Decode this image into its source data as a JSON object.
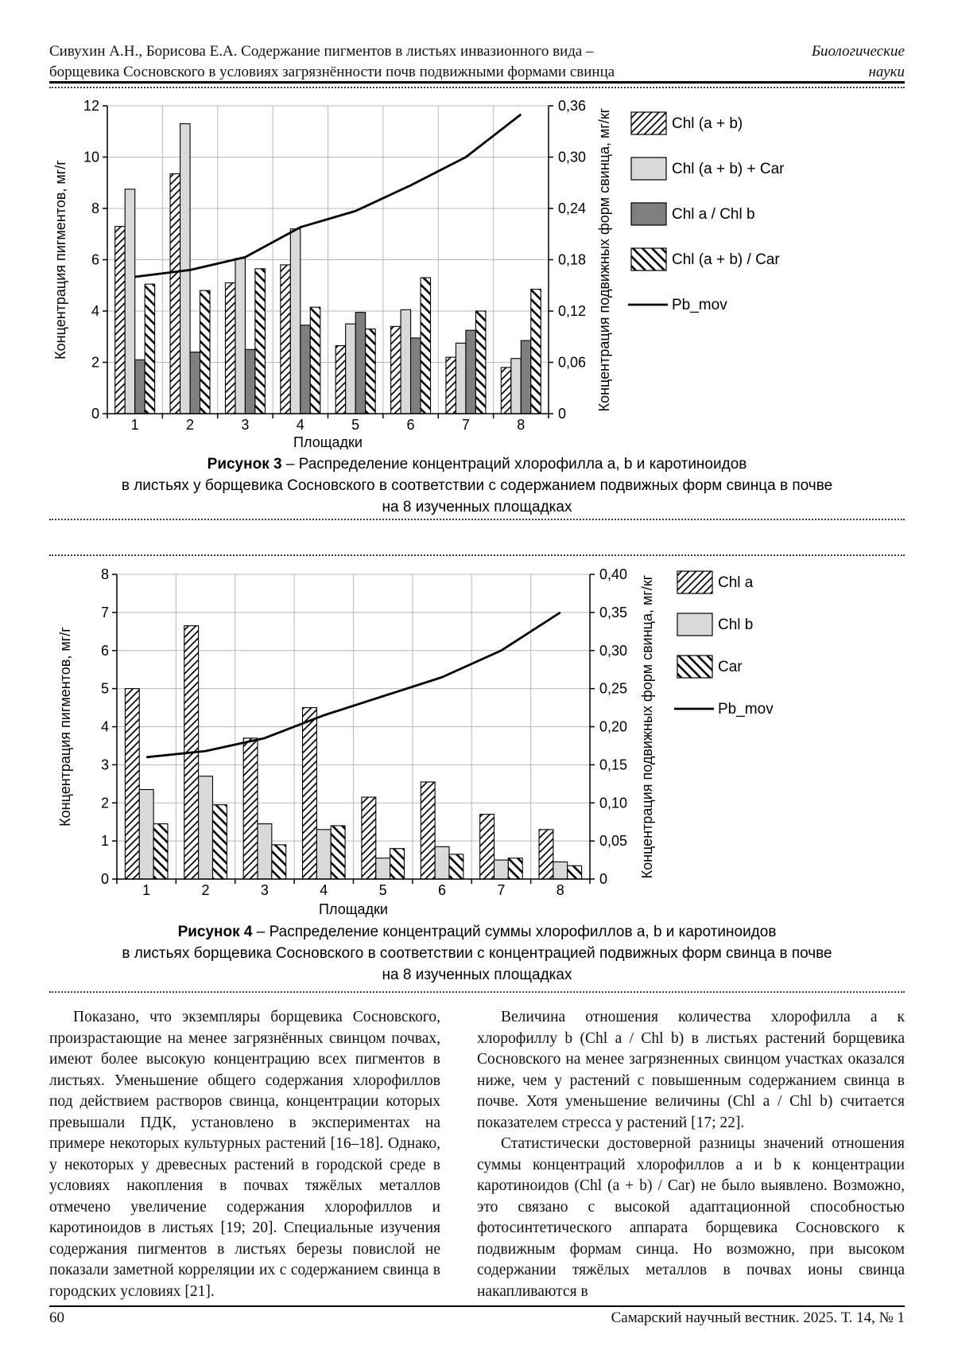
{
  "header": {
    "left_line1": "Сивухин А.Н., Борисова Е.А. Содержание пигментов в листьях инвазионного вида –",
    "left_line2": "борщевика Сосновского в условиях загрязнённости почв подвижными формами свинца",
    "right_line1": "Биологические",
    "right_line2": "науки"
  },
  "chart_data": [
    {
      "type": "bar",
      "title": "",
      "categories": [
        "1",
        "2",
        "3",
        "4",
        "5",
        "6",
        "7",
        "8"
      ],
      "xlabel": "Площадки",
      "ylabel_left": "Концентрация  пигментов,  мг/г",
      "ylabel_right": "Концентрация  подвижных  форм  свинца,  мг/кг",
      "ylim_left": [
        0,
        12
      ],
      "ytick_step_left": 2,
      "ylim_right": [
        0,
        0.36
      ],
      "ytick_step_right": 0.06,
      "grid": true,
      "legend_position": "right",
      "series": [
        {
          "name": "Chl (a + b)",
          "pattern": "diag",
          "values": [
            7.3,
            9.35,
            5.1,
            5.8,
            2.65,
            3.4,
            2.2,
            1.8
          ]
        },
        {
          "name": "Chl (a + b) + Car",
          "pattern": "light",
          "values": [
            8.75,
            11.3,
            6.05,
            7.2,
            3.5,
            4.05,
            2.75,
            2.15
          ]
        },
        {
          "name": "Chl a / Chl b",
          "pattern": "dark",
          "values": [
            2.1,
            2.4,
            2.5,
            3.45,
            3.95,
            2.95,
            3.25,
            2.85
          ]
        },
        {
          "name": "Chl (a + b) / Car",
          "pattern": "back",
          "values": [
            5.05,
            4.8,
            5.65,
            4.15,
            3.3,
            5.3,
            4.0,
            4.85
          ]
        }
      ],
      "line_series": {
        "name": "Pb_mov",
        "axis": "right",
        "values": [
          0.16,
          0.168,
          0.183,
          0.218,
          0.237,
          0.267,
          0.3,
          0.35
        ]
      }
    },
    {
      "type": "bar",
      "title": "",
      "categories": [
        "1",
        "2",
        "3",
        "4",
        "5",
        "6",
        "7",
        "8"
      ],
      "xlabel": "Площадки",
      "ylabel_left": "Концентрация  пигментов,  мг/г",
      "ylabel_right": "Концентрация  подвижных  форм  свинца,  мг/кг",
      "ylim_left": [
        0,
        8
      ],
      "ytick_step_left": 1,
      "ylim_right": [
        0,
        0.4
      ],
      "ytick_step_right": 0.05,
      "grid": true,
      "legend_position": "right",
      "series": [
        {
          "name": "Chl a",
          "pattern": "diag",
          "values": [
            5.0,
            6.65,
            3.7,
            4.5,
            2.15,
            2.55,
            1.7,
            1.3
          ]
        },
        {
          "name": "Chl b",
          "pattern": "light",
          "values": [
            2.35,
            2.7,
            1.45,
            1.3,
            0.55,
            0.85,
            0.5,
            0.45
          ]
        },
        {
          "name": "Car",
          "pattern": "back",
          "values": [
            1.45,
            1.95,
            0.9,
            1.4,
            0.8,
            0.65,
            0.55,
            0.35
          ]
        }
      ],
      "line_series": {
        "name": "Pb_mov",
        "axis": "right",
        "values": [
          0.16,
          0.168,
          0.185,
          0.215,
          0.24,
          0.265,
          0.3,
          0.35
        ]
      }
    }
  ],
  "fig3_caption": {
    "label": "Рисунок 3",
    "rest": " – Распределение концентраций хлорофилла a, b и каротиноидов",
    "line2": "в листьях у борщевика Сосновского в соответствии с содержанием подвижных форм свинца в почве",
    "line3": "на 8 изученных площадках"
  },
  "fig4_caption": {
    "label": "Рисунок 4",
    "rest": " – Распределение концентраций суммы хлорофиллов a, b и каротиноидов",
    "line2": "в листьях борщевика Сосновского в соответствии с концентрацией подвижных форм свинца в почве",
    "line3": "на 8 изученных площадках"
  },
  "body": {
    "left_p1": "Показано, что экземпляры борщевика Сосновского, произрастающие на менее загрязнённых свинцом почвах, имеют более высокую концентрацию всех пигментов в листьях. Уменьшение общего содержания хлорофиллов под действием растворов свинца, концентрации которых превышали ПДК, установлено в экспериментах на примере некоторых культурных растений [16–18]. Однако, у некоторых у древесных растений в городской среде в условиях накопления в почвах тяжёлых металлов отмечено увеличение содержания хлорофиллов и каротиноидов в листьях [19; 20]. Специальные изучения содержания пигментов в листьях березы повислой не показали заметной корреляции их с содержанием свинца в городских условиях [21].",
    "right_p1": "Величина отношения количества хлорофилла a к хлорофиллу b (Chl a / Chl b) в листьях растений борщевика Сосновского на менее загрязненных свинцом участках оказался ниже, чем у растений с повышенным содержанием свинца в почве. Хотя уменьшение величины (Chl a / Chl b) считается показателем стресса у растений [17; 22].",
    "right_p2": "Статистически достоверной разницы значений отношения суммы концентраций хлорофиллов a и b к концентрации каротиноидов (Chl (a + b) / Car) не было выявлено. Возможно, это связано с высокой адаптационной способностью фотосинтетического аппарата борщевика Сосновского к подвижным формам синца. Но возможно, при высоком содержании тяжёлых металлов в почвах ионы свинца накапливаются в"
  },
  "footer": {
    "page_number": "60",
    "journal": "Самарский научный вестник. 2025. Т. 14, № 1"
  },
  "colors": {
    "bar_light": "#d9d9d9",
    "bar_dark": "#7f7f7f",
    "grid": "#b8b8b8",
    "axis": "#000000"
  }
}
